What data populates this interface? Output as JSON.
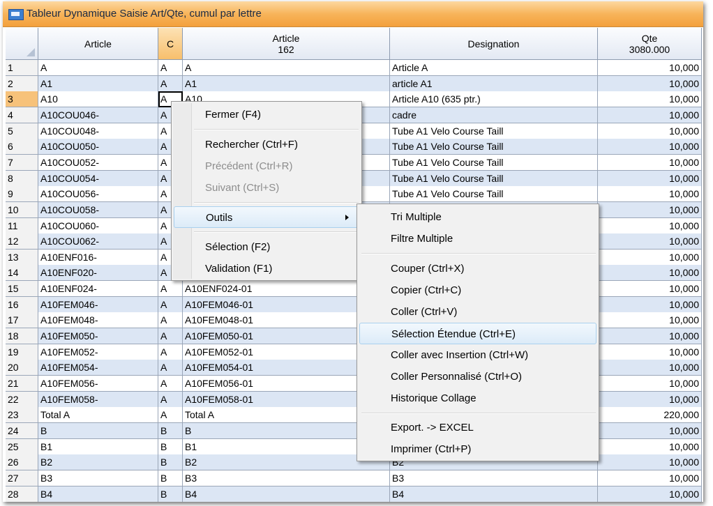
{
  "window": {
    "title": "Tableur Dynamique Saisie Art/Qte, cumul par lettre"
  },
  "table": {
    "headers": [
      {
        "label": "Article"
      },
      {
        "label": "C"
      },
      {
        "label": "Article",
        "sub": "162"
      },
      {
        "label": "Designation"
      },
      {
        "label": "Qte",
        "sub": "3080.000"
      }
    ],
    "selected_row": 3,
    "rows": [
      [
        1,
        "A",
        "A",
        "A",
        "Article A",
        "10,000"
      ],
      [
        2,
        "A1",
        "A",
        "A1",
        "article A1",
        "10,000"
      ],
      [
        3,
        "A10",
        "A",
        "A10",
        "Article A10 (635 ptr.)",
        "10,000"
      ],
      [
        4,
        "A10COU046-",
        "A",
        null,
        "cadre",
        "10,000"
      ],
      [
        5,
        "A10COU048-",
        "A",
        null,
        "Tube A1 Velo Course Taill",
        "10,000"
      ],
      [
        6,
        "A10COU050-",
        "A",
        null,
        "Tube A1 Velo Course Taill",
        "10,000"
      ],
      [
        7,
        "A10COU052-",
        "A",
        null,
        "Tube A1 Velo Course Taill",
        "10,000"
      ],
      [
        8,
        "A10COU054-",
        "A",
        null,
        "Tube A1 Velo Course Taill",
        "10,000"
      ],
      [
        9,
        "A10COU056-",
        "A",
        null,
        "Tube A1 Velo Course Taill",
        "10,000"
      ],
      [
        10,
        "A10COU058-",
        "A",
        null,
        null,
        "10,000"
      ],
      [
        11,
        "A10COU060-",
        "A",
        null,
        null,
        "10,000"
      ],
      [
        12,
        "A10COU062-",
        "A",
        null,
        null,
        "10,000"
      ],
      [
        13,
        "A10ENF016-",
        "A",
        null,
        null,
        "10,000"
      ],
      [
        14,
        "A10ENF020-",
        "A",
        null,
        null,
        "10,000"
      ],
      [
        15,
        "A10ENF024-",
        "A",
        "A10ENF024-01",
        null,
        "10,000"
      ],
      [
        16,
        "A10FEM046-",
        "A",
        "A10FEM046-01",
        null,
        "10,000"
      ],
      [
        17,
        "A10FEM048-",
        "A",
        "A10FEM048-01",
        null,
        "10,000"
      ],
      [
        18,
        "A10FEM050-",
        "A",
        "A10FEM050-01",
        null,
        "10,000"
      ],
      [
        19,
        "A10FEM052-",
        "A",
        "A10FEM052-01",
        null,
        "10,000"
      ],
      [
        20,
        "A10FEM054-",
        "A",
        "A10FEM054-01",
        null,
        "10,000"
      ],
      [
        21,
        "A10FEM056-",
        "A",
        "A10FEM056-01",
        null,
        "10,000"
      ],
      [
        22,
        "A10FEM058-",
        "A",
        "A10FEM058-01",
        null,
        "10,000"
      ],
      [
        23,
        "Total A",
        "A",
        "Total A",
        null,
        "220,000"
      ],
      [
        24,
        "B",
        "B",
        "B",
        null,
        "10,000"
      ],
      [
        25,
        "B1",
        "B",
        "B1",
        null,
        "10,000"
      ],
      [
        26,
        "B2",
        "B",
        "B2",
        "B2",
        "10,000"
      ],
      [
        27,
        "B3",
        "B",
        "B3",
        "B3",
        "10,000"
      ],
      [
        28,
        "B4",
        "B",
        "B4",
        "B4",
        "10,000"
      ]
    ]
  },
  "menus": {
    "context": {
      "groups": [
        [
          {
            "label": "Fermer (F4)"
          }
        ],
        [
          {
            "label": "Rechercher (Ctrl+F)"
          },
          {
            "label": "Précédent (Ctrl+R)",
            "state": "disabled"
          },
          {
            "label": "Suivant (Ctrl+S)",
            "state": "disabled"
          }
        ],
        [
          {
            "label": "Outils",
            "state": "hover",
            "submenu": true
          }
        ],
        [
          {
            "label": "Sélection (F2)"
          },
          {
            "label": "Validation (F1)"
          }
        ]
      ]
    },
    "submenu": {
      "groups": [
        [
          {
            "label": "Tri Multiple"
          },
          {
            "label": "Filtre Multiple"
          }
        ],
        [
          {
            "label": "Couper (Ctrl+X)"
          },
          {
            "label": "Copier (Ctrl+C)"
          },
          {
            "label": "Coller (Ctrl+V)"
          },
          {
            "label": "Sélection Étendue (Ctrl+E)",
            "state": "hover"
          },
          {
            "label": "Coller avec Insertion (Ctrl+W)"
          },
          {
            "label": "Coller Personnalisé (Ctrl+O)"
          },
          {
            "label": "Historique Collage"
          }
        ],
        [
          {
            "label": "Export. -> EXCEL"
          },
          {
            "label": "Imprimer (Ctrl+P)"
          }
        ]
      ]
    }
  }
}
